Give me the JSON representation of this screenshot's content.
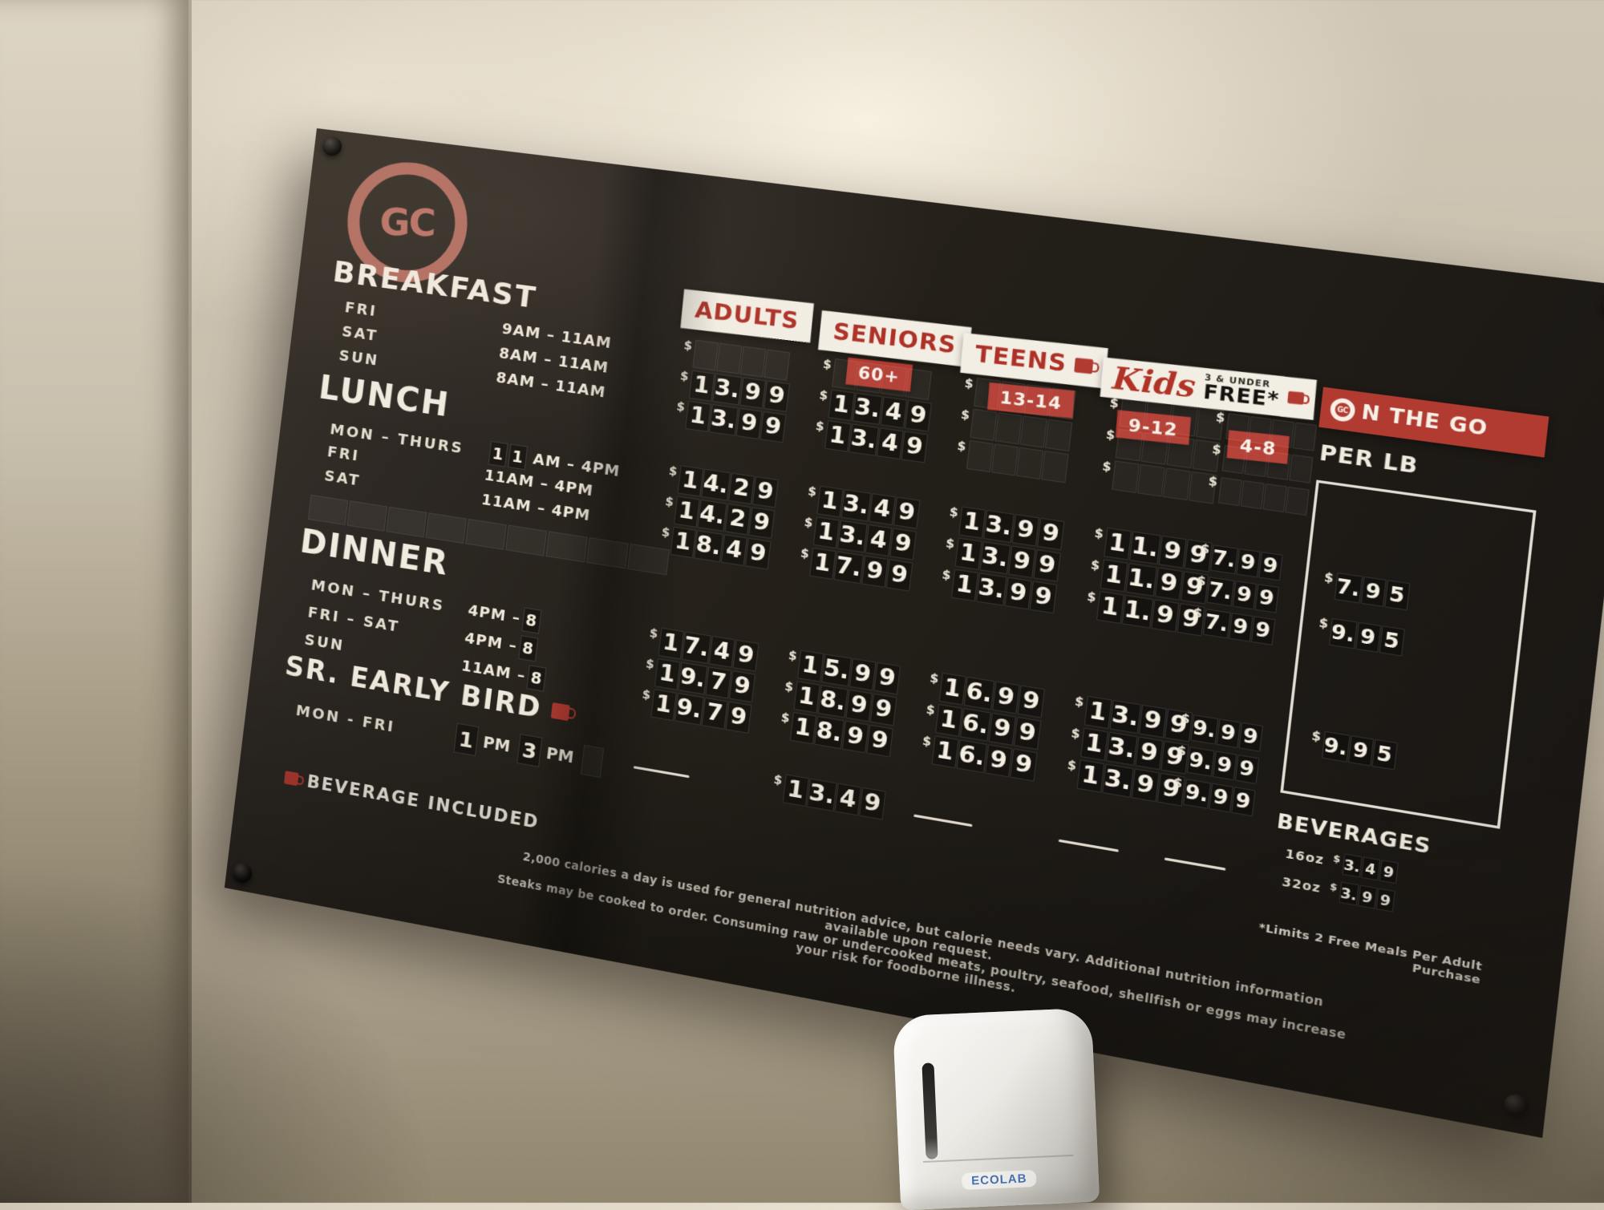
{
  "logo": "GC",
  "schedule": {
    "breakfast": {
      "title": "BREAKFAST",
      "rows": [
        {
          "day": "FRI",
          "time": "9AM – 11AM"
        },
        {
          "day": "SAT",
          "time": "8AM – 11AM"
        },
        {
          "day": "SUN",
          "time": "8AM – 11AM"
        }
      ]
    },
    "lunch": {
      "title": "LUNCH",
      "row0": {
        "day": "MON – THURS",
        "ta": "1",
        "tb": "1",
        "rest": "AM – 4PM"
      },
      "rows": [
        {
          "day": "FRI",
          "time": "11AM – 4PM"
        },
        {
          "day": "SAT",
          "time": "11AM – 4PM"
        }
      ]
    },
    "dinner": {
      "title": "DINNER",
      "rows": [
        {
          "day": "MON – THURS",
          "prefix": "4PM – ",
          "tile": "8"
        },
        {
          "day": "FRI – SAT",
          "prefix": "4PM – ",
          "tile": "8"
        },
        {
          "day": "SUN",
          "prefix": "11AM – ",
          "tile": "8"
        }
      ]
    },
    "early_bird": {
      "title": "SR. EARLY BIRD",
      "days": "MON - FRI",
      "t1": "1",
      "s1": "PM",
      "t2": "3",
      "s2": "PM"
    }
  },
  "headers": {
    "adults": "ADULTS",
    "seniors": "SENIORS",
    "seniors_sub": "60+",
    "teens": "TEENS",
    "teens_sub": "13-14",
    "kids_script": "Kids",
    "kids_note_top": "3 & UNDER",
    "kids_note_bottom": "FREE*",
    "kids_sub_912": "9-12",
    "kids_sub_48": "4-8"
  },
  "prices": {
    "breakfast": {
      "adults": [
        "",
        "13.99",
        "13.99"
      ],
      "seniors": [
        "",
        "13.49",
        "13.49"
      ],
      "teens": [
        "",
        "",
        ""
      ],
      "kids912": [
        "",
        "",
        ""
      ],
      "kids48": [
        "",
        "",
        ""
      ]
    },
    "lunch": {
      "adults": [
        "14.29",
        "14.29",
        "18.49"
      ],
      "seniors": [
        "13.49",
        "13.49",
        "17.99"
      ],
      "teens": [
        "13.99",
        "13.99",
        "13.99"
      ],
      "kids912": [
        "11.99",
        "11.99",
        "11.99"
      ],
      "kids48": [
        "7.99",
        "7.99",
        "7.99"
      ]
    },
    "dinner": {
      "adults": [
        "17.49",
        "19.79",
        "19.79"
      ],
      "seniors": [
        "15.99",
        "18.99",
        "18.99"
      ],
      "teens": [
        "16.99",
        "16.99",
        "16.99"
      ],
      "kids912": [
        "13.99",
        "13.99",
        "13.99"
      ],
      "kids48": [
        "9.99",
        "9.99",
        "9.99"
      ]
    },
    "early_bird": {
      "adults": "—",
      "seniors": "13.49",
      "teens": "—",
      "kids912": "—",
      "kids48": "—"
    }
  },
  "on_the_go": {
    "o_icon_letters": "GC",
    "title_rest": "N THE GO",
    "per_lb_label": "PER LB",
    "per_lb_prices": [
      "7.95",
      "9.95",
      "9.95"
    ],
    "beverages_label": "BEVERAGES",
    "beverages": [
      {
        "size": "16oz",
        "price": "3.49"
      },
      {
        "size": "32oz",
        "price": "3.99"
      }
    ]
  },
  "footer": {
    "beverage_included": "BEVERAGE INCLUDED",
    "limit_note": "*Limits 2 Free Meals Per Adult Purchase",
    "disclaimer_line1": "2,000 calories a day is used for general nutrition advice, but calorie needs vary. Additional nutrition information available upon request.",
    "disclaimer_line2": "Steaks may be cooked to order. Consuming raw or undercooked meats, poultry, seafood, shellfish or eggs may increase your risk for foodborne illness."
  },
  "dispenser": {
    "brand": "ECOLAB"
  },
  "colors": {
    "accent": "#b23b31",
    "board": "#221e1a",
    "wall": "#c8beac",
    "text": "#f1ebdf",
    "logo": "#c47a6a"
  }
}
